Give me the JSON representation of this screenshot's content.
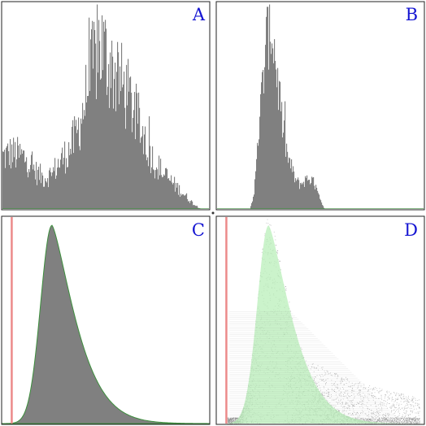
{
  "colors": {
    "background": "#ffffff",
    "frame": "#222222",
    "histogram": "#808080",
    "green_outline": "#3d8f3d",
    "green_fill": "#b7eeb7",
    "marker": "#ec8a8a",
    "label": "#1414d2",
    "scatter": "#8a8a8a"
  },
  "chart_data": [
    {
      "type": "bar",
      "panel": "A",
      "label": "A",
      "xlim": [
        0,
        1
      ],
      "ylim": [
        0,
        1
      ],
      "shape": "bimodal noisy histogram; main peak near x=0.45, shoulder near x=0.12, tail to x=0.97",
      "peaks": [
        {
          "x": 0.1,
          "height": 0.18,
          "width": 0.05
        },
        {
          "x": 0.47,
          "height": 0.78,
          "width": 0.13
        },
        {
          "x": 0.3,
          "height": 0.1,
          "width": 0.1
        }
      ],
      "envelope": [
        [
          0.0,
          0.25
        ],
        [
          0.04,
          0.27
        ],
        [
          0.08,
          0.26
        ],
        [
          0.12,
          0.24
        ],
        [
          0.16,
          0.18
        ],
        [
          0.2,
          0.15
        ],
        [
          0.24,
          0.17
        ],
        [
          0.28,
          0.23
        ],
        [
          0.32,
          0.28
        ],
        [
          0.36,
          0.36
        ],
        [
          0.4,
          0.52
        ],
        [
          0.44,
          0.7
        ],
        [
          0.47,
          0.8
        ],
        [
          0.5,
          0.74
        ],
        [
          0.54,
          0.66
        ],
        [
          0.58,
          0.6
        ],
        [
          0.62,
          0.52
        ],
        [
          0.66,
          0.42
        ],
        [
          0.7,
          0.3
        ],
        [
          0.74,
          0.22
        ],
        [
          0.78,
          0.17
        ],
        [
          0.82,
          0.13
        ],
        [
          0.86,
          0.09
        ],
        [
          0.9,
          0.05
        ],
        [
          0.93,
          0.02
        ],
        [
          0.96,
          0.0
        ]
      ]
    },
    {
      "type": "bar",
      "panel": "B",
      "label": "B",
      "xlim": [
        0,
        1
      ],
      "ylim": [
        0,
        1
      ],
      "shape": "narrow histogram peak near x=0.25 with secondary bump near x=0.45",
      "envelope": [
        [
          0.0,
          0.0
        ],
        [
          0.16,
          0.0
        ],
        [
          0.18,
          0.08
        ],
        [
          0.2,
          0.35
        ],
        [
          0.22,
          0.6
        ],
        [
          0.24,
          0.82
        ],
        [
          0.26,
          0.9
        ],
        [
          0.28,
          0.76
        ],
        [
          0.3,
          0.55
        ],
        [
          0.32,
          0.38
        ],
        [
          0.34,
          0.26
        ],
        [
          0.36,
          0.2
        ],
        [
          0.38,
          0.14
        ],
        [
          0.4,
          0.12
        ],
        [
          0.42,
          0.13
        ],
        [
          0.44,
          0.15
        ],
        [
          0.46,
          0.14
        ],
        [
          0.48,
          0.1
        ],
        [
          0.5,
          0.04
        ],
        [
          0.52,
          0.0
        ],
        [
          1.0,
          0.0
        ]
      ]
    },
    {
      "type": "area",
      "panel": "C",
      "label": "C",
      "xlim": [
        0,
        1
      ],
      "ylim": [
        0,
        1
      ],
      "peak_x": 0.24,
      "peak_height": 0.96,
      "left_width": 0.055,
      "right_width": 0.17,
      "marker_x": 0.045
    },
    {
      "type": "scatter",
      "panel": "D",
      "label": "D",
      "xlim": [
        0,
        1
      ],
      "ylim": [
        0,
        1
      ],
      "peak_x": 0.25,
      "peak_height": 0.96,
      "left_width": 0.055,
      "right_width": 0.17,
      "marker_x": 0.045,
      "point_count": 3200
    }
  ]
}
